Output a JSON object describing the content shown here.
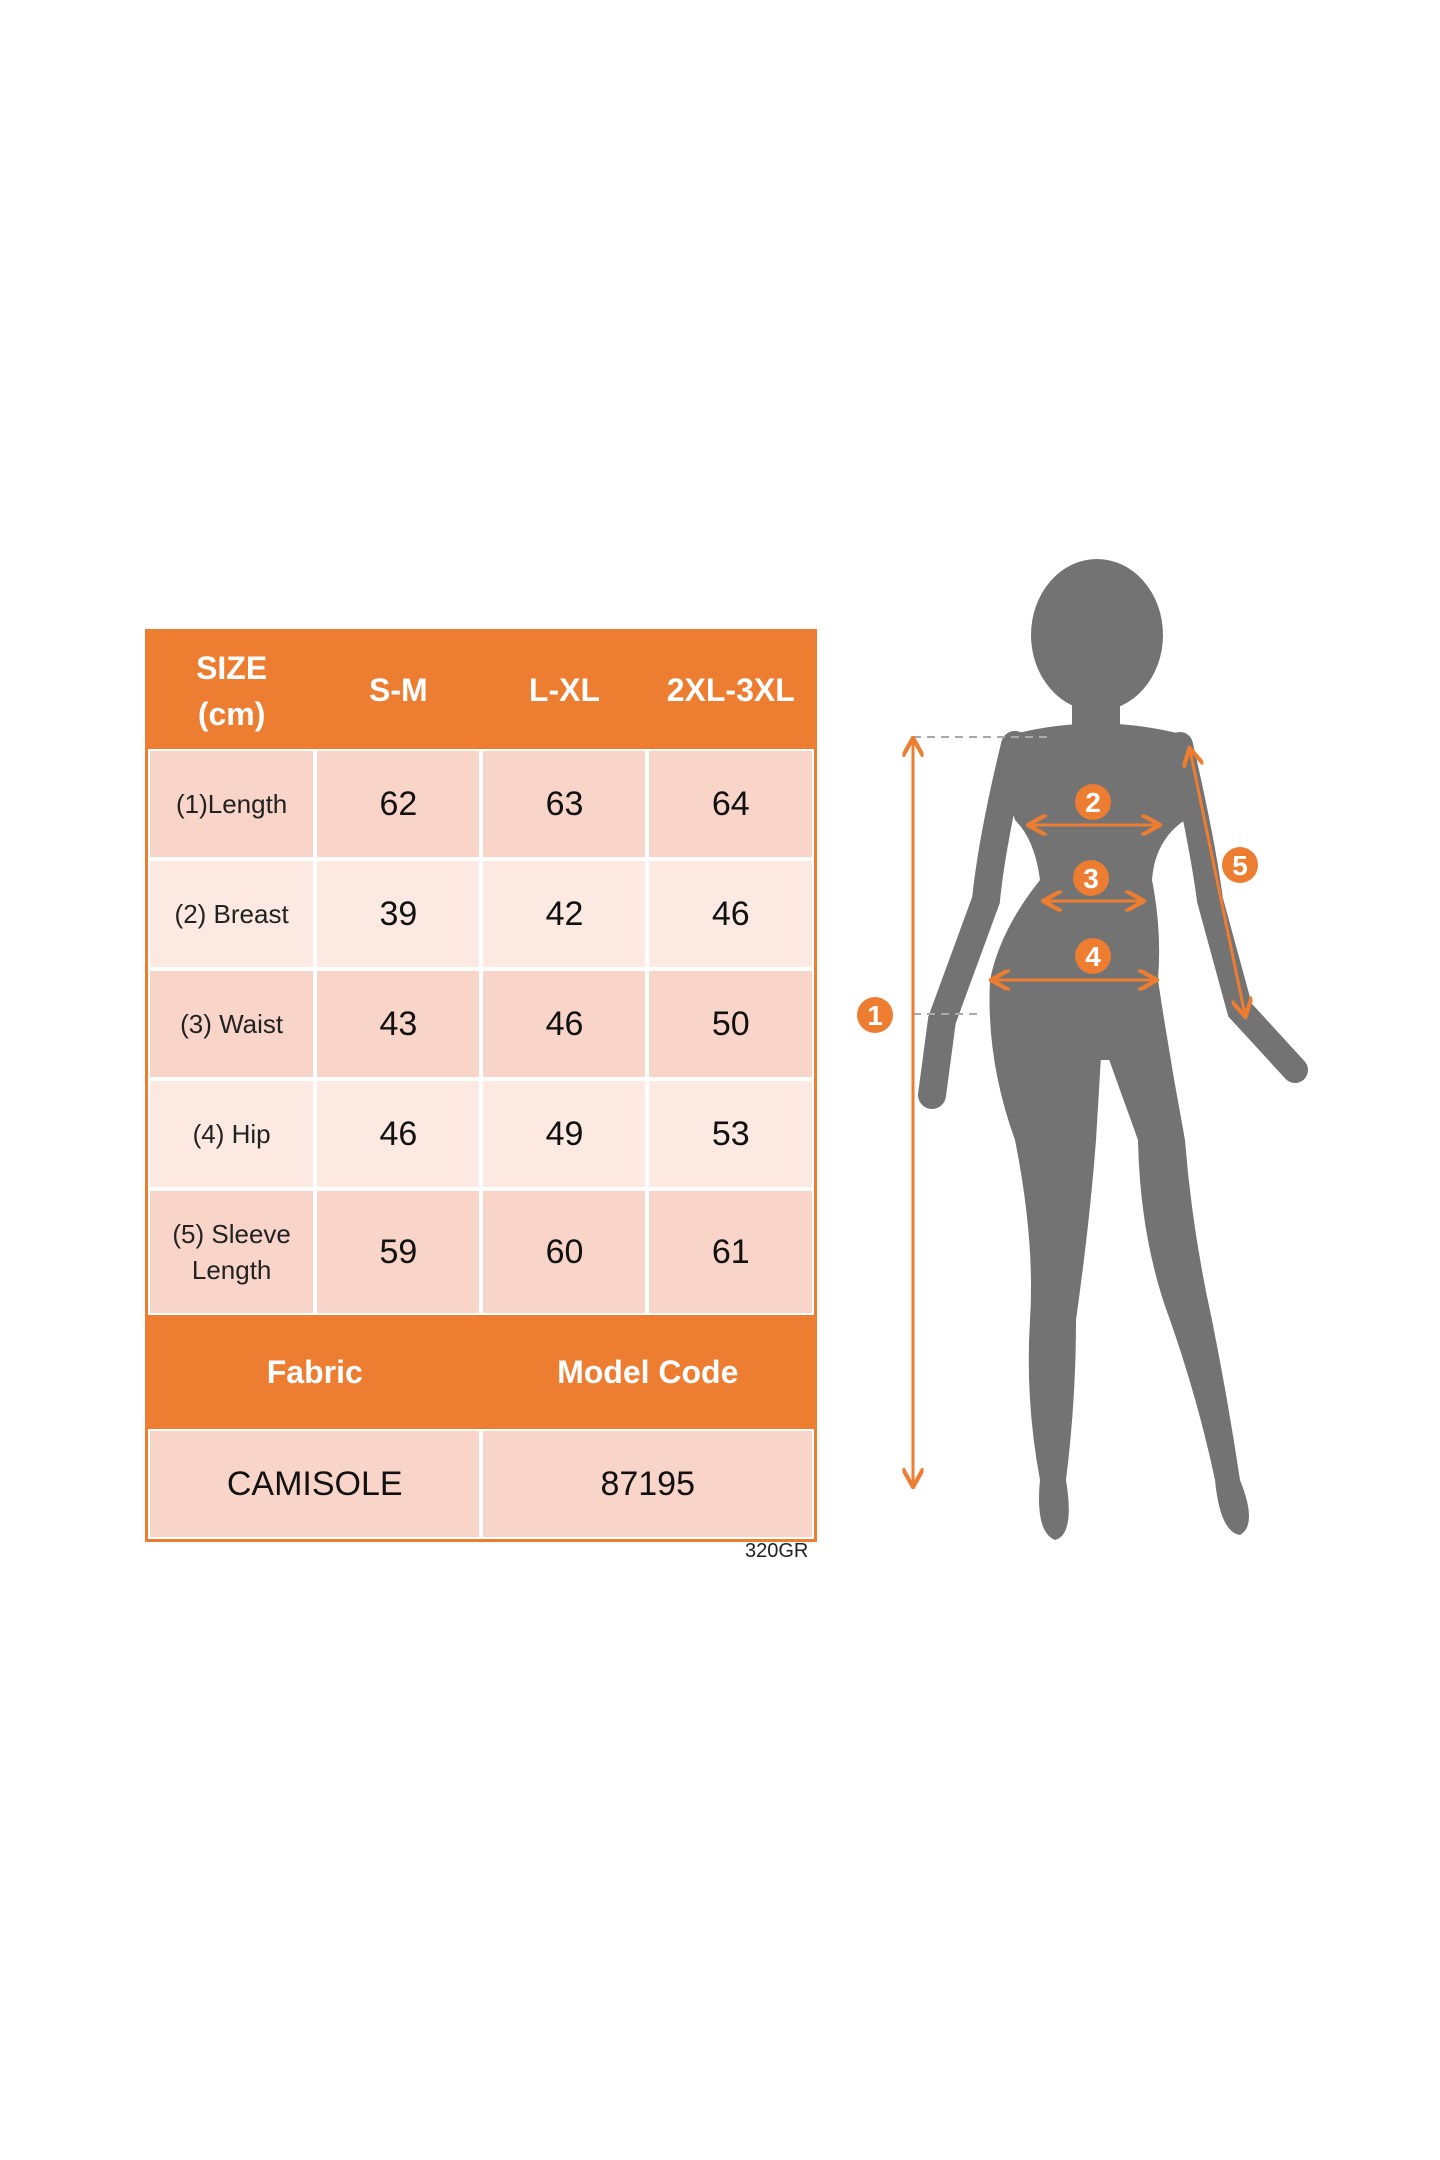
{
  "colors": {
    "accent": "#ed7d31",
    "row_dark": "#f8d5c8",
    "row_light": "#fbe9e2",
    "silhouette": "#737373"
  },
  "table": {
    "header": {
      "size_label": "SIZE",
      "unit_label": "(cm)",
      "sizes": [
        "S-M",
        "L-XL",
        "2XL-3XL"
      ]
    },
    "rows": [
      {
        "label": "(1)Length",
        "values": [
          "62",
          "63",
          "64"
        ]
      },
      {
        "label": "(2) Breast",
        "values": [
          "39",
          "42",
          "46"
        ]
      },
      {
        "label": "(3) Waist",
        "values": [
          "43",
          "46",
          "50"
        ]
      },
      {
        "label": "(4) Hip",
        "values": [
          "46",
          "49",
          "53"
        ]
      },
      {
        "label_line1": "(5) Sleeve",
        "label_line2": "Length",
        "values": [
          "59",
          "60",
          "61"
        ]
      }
    ],
    "fabric_header": "Fabric",
    "model_code_header": "Model Code",
    "fabric_value": "CAMISOLE",
    "model_code_value": "87195"
  },
  "weight_note": "320GR",
  "figure": {
    "markers": [
      "1",
      "2",
      "3",
      "4",
      "5"
    ]
  }
}
